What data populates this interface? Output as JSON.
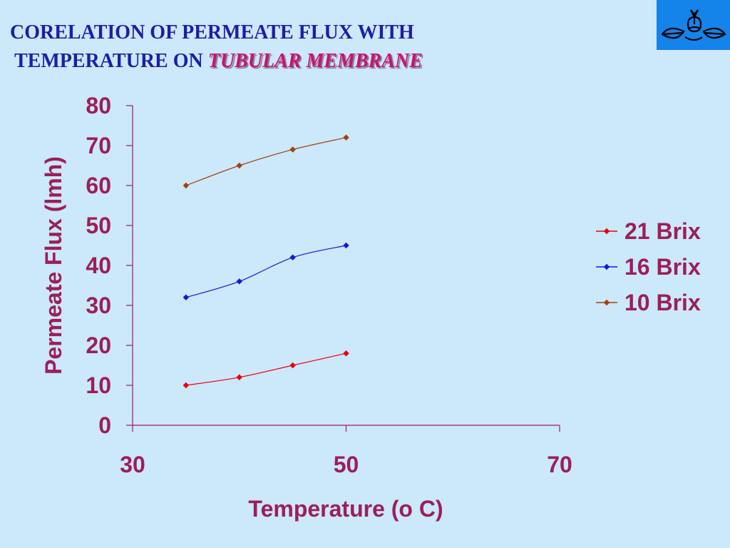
{
  "slide": {
    "title_line1": "CORELATION OF PERMEATE FLUX WITH",
    "title_line2_prefix": "TEMPERATURE ON ",
    "title_line2_emphasis": "TUBULAR MEMBRANE",
    "logo_icon": "institution-logo-icon"
  },
  "colors": {
    "background": "#cce8fb",
    "title": "#1c1fa6",
    "emphasis": "#d0106b",
    "axis_text": "#9b1f58",
    "axis_line": "#9b1f58",
    "logo_bg": "#1483ea"
  },
  "chart_data": {
    "type": "line",
    "title": "",
    "xlabel": "Temperature (o C)",
    "ylabel": "Permeate Flux (lmh)",
    "xlim": [
      30,
      70
    ],
    "ylim": [
      0,
      80
    ],
    "x_ticks": [
      30,
      50,
      70
    ],
    "y_ticks": [
      0,
      10,
      20,
      30,
      40,
      50,
      60,
      70,
      80
    ],
    "grid": false,
    "legend_position": "right",
    "series": [
      {
        "name": "21 Brix",
        "color": "#e8000b",
        "x": [
          35,
          40,
          45,
          50
        ],
        "y": [
          10,
          12,
          15,
          18
        ]
      },
      {
        "name": "16 Brix",
        "color": "#0a1fd6",
        "x": [
          35,
          40,
          45,
          50
        ],
        "y": [
          32,
          36,
          42,
          45
        ]
      },
      {
        "name": "10 Brix",
        "color": "#a0420f",
        "x": [
          35,
          40,
          45,
          50
        ],
        "y": [
          60,
          65,
          69,
          72
        ]
      }
    ]
  }
}
